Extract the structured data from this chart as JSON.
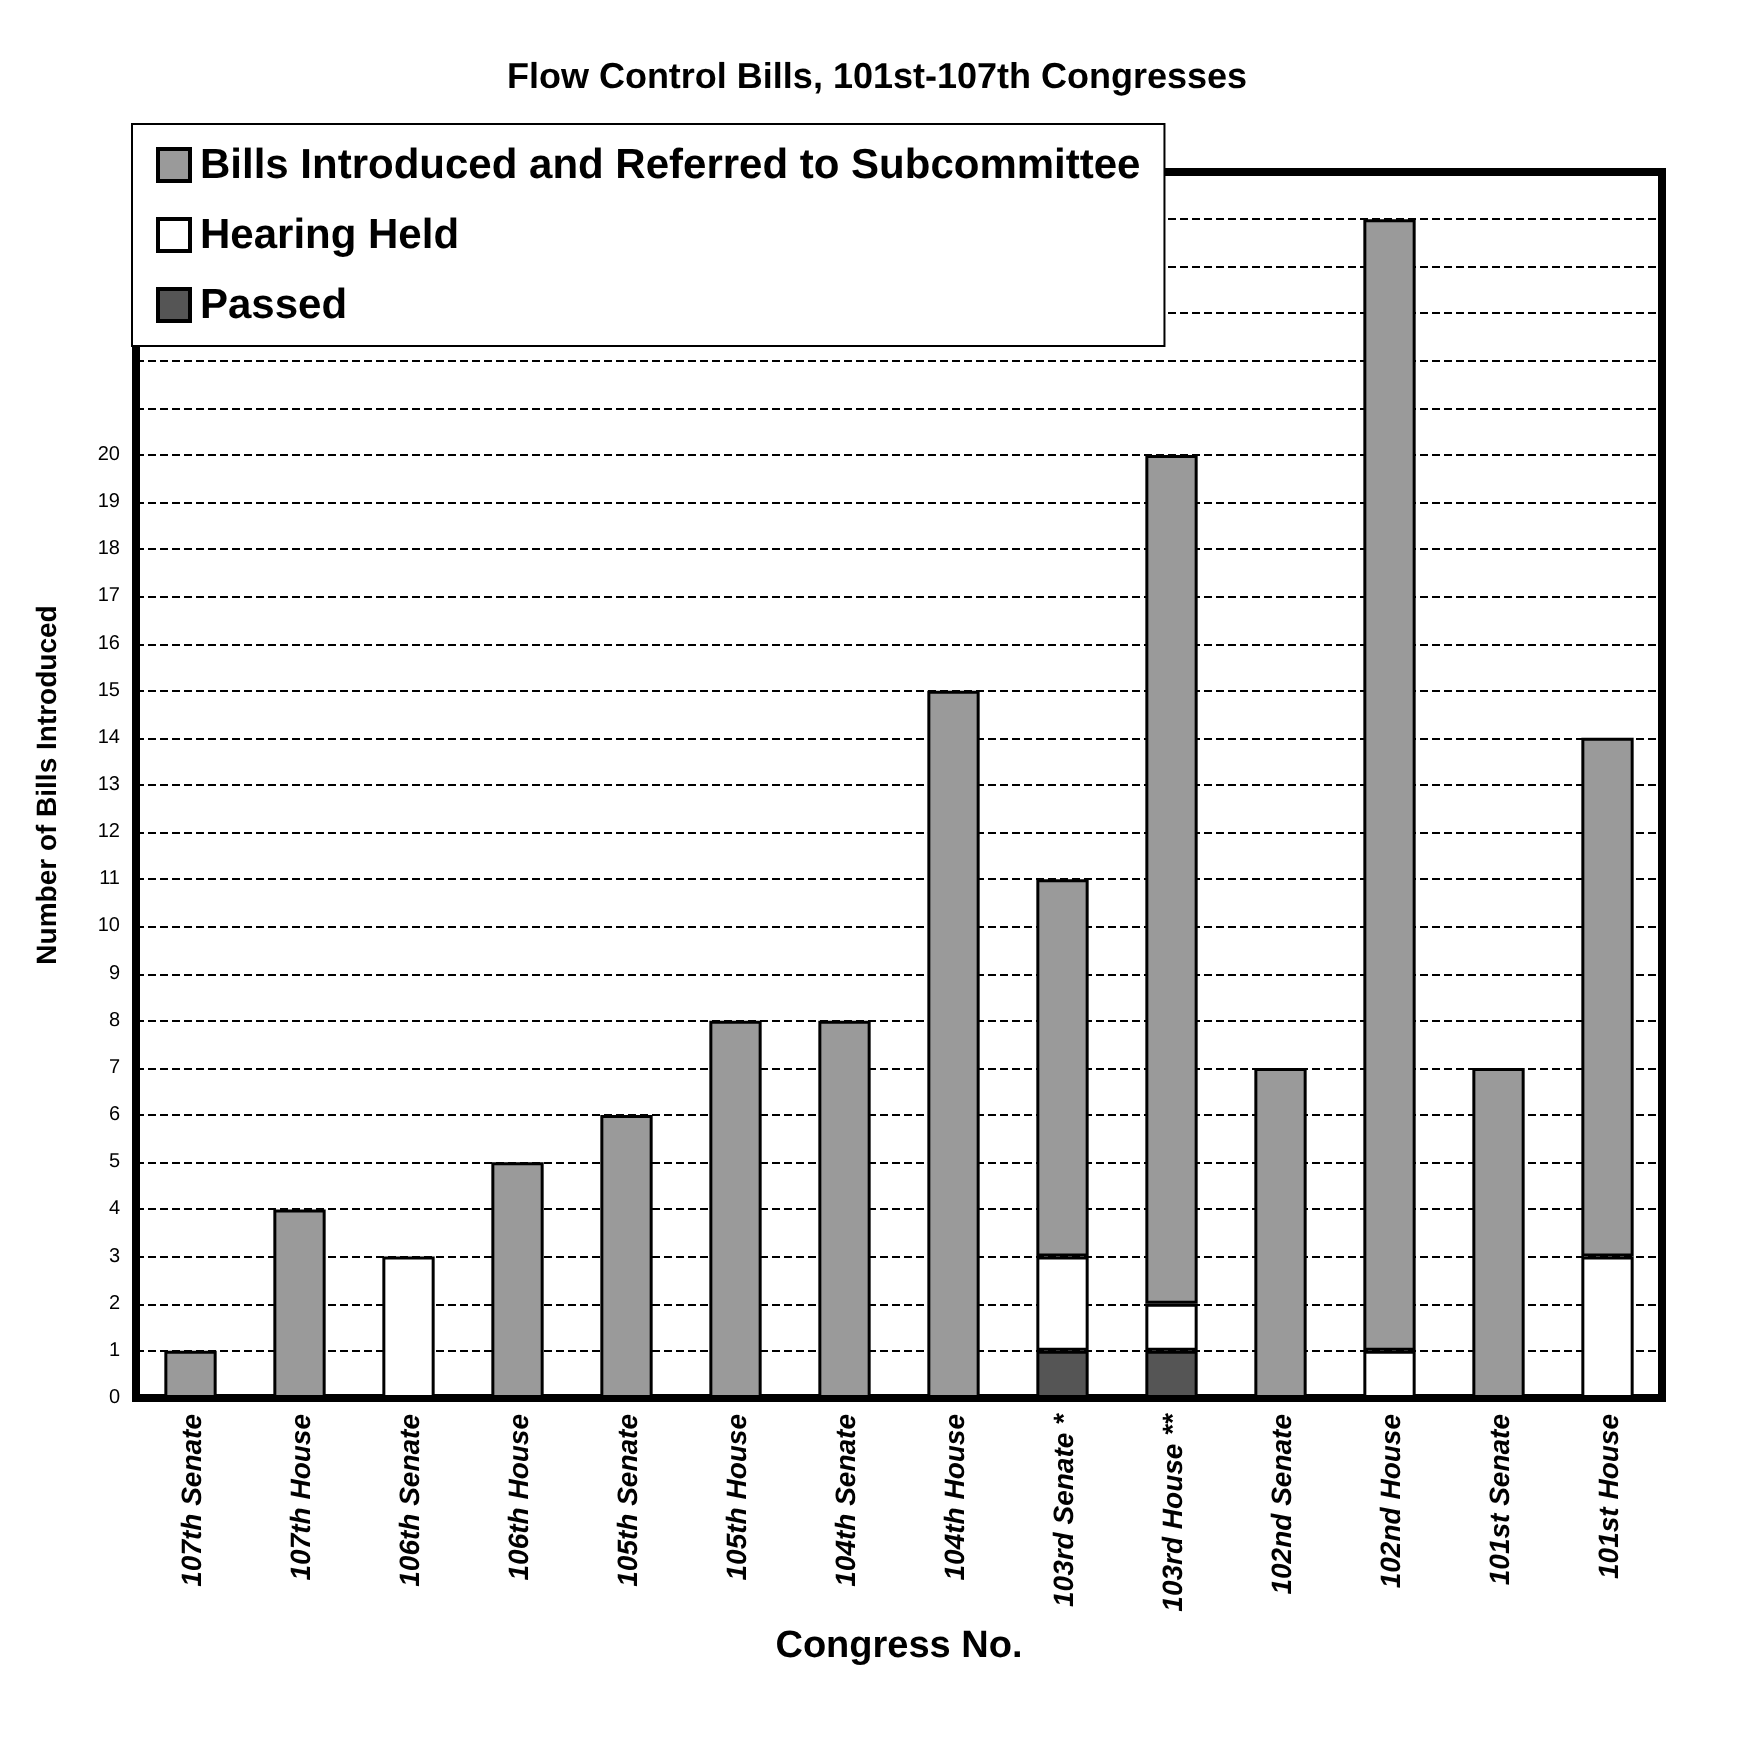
{
  "chart_data": {
    "type": "bar",
    "stacked": true,
    "title": "Flow Control Bills, 101st-107th Congresses",
    "xlabel": "Congress No.",
    "ylabel": "Number of Bills Introduced",
    "categories": [
      "107th Senate",
      "107th House",
      "106th Senate",
      "106th House",
      "105th Senate",
      "105th House",
      "104th Senate",
      "104th House",
      "103rd Senate *",
      "103rd House **",
      "102nd Senate",
      "102nd House",
      "101st Senate",
      "101st House"
    ],
    "series": [
      {
        "name": "Passed",
        "color": "#555555",
        "values": [
          0,
          0,
          0,
          0,
          0,
          0,
          0,
          0,
          1,
          1,
          0,
          0,
          0,
          0
        ]
      },
      {
        "name": "Hearing Held",
        "color": "#ffffff",
        "values": [
          0,
          0,
          3,
          0,
          0,
          0,
          0,
          0,
          2,
          1,
          0,
          1,
          0,
          3
        ]
      },
      {
        "name": "Bills Introduced and Referred to Subcommittee",
        "color": "#9a9a9a",
        "values": [
          1,
          4,
          0,
          5,
          6,
          8,
          8,
          15,
          8,
          18,
          7,
          24,
          7,
          11
        ]
      }
    ],
    "ylim": [
      0,
      26
    ],
    "yticks": [
      0,
      1,
      2,
      3,
      4,
      5,
      6,
      7,
      8,
      9,
      10,
      11,
      12,
      13,
      14,
      15,
      16,
      17,
      18,
      19,
      20,
      {
        "value": 21,
        "label": null
      },
      {
        "value": 22,
        "label": null
      },
      {
        "value": 23,
        "label": null
      },
      {
        "value": 24,
        "label": null
      },
      {
        "value": 25,
        "label": null
      }
    ],
    "grid": "y",
    "line_style": "dashed",
    "legend": "top left"
  }
}
